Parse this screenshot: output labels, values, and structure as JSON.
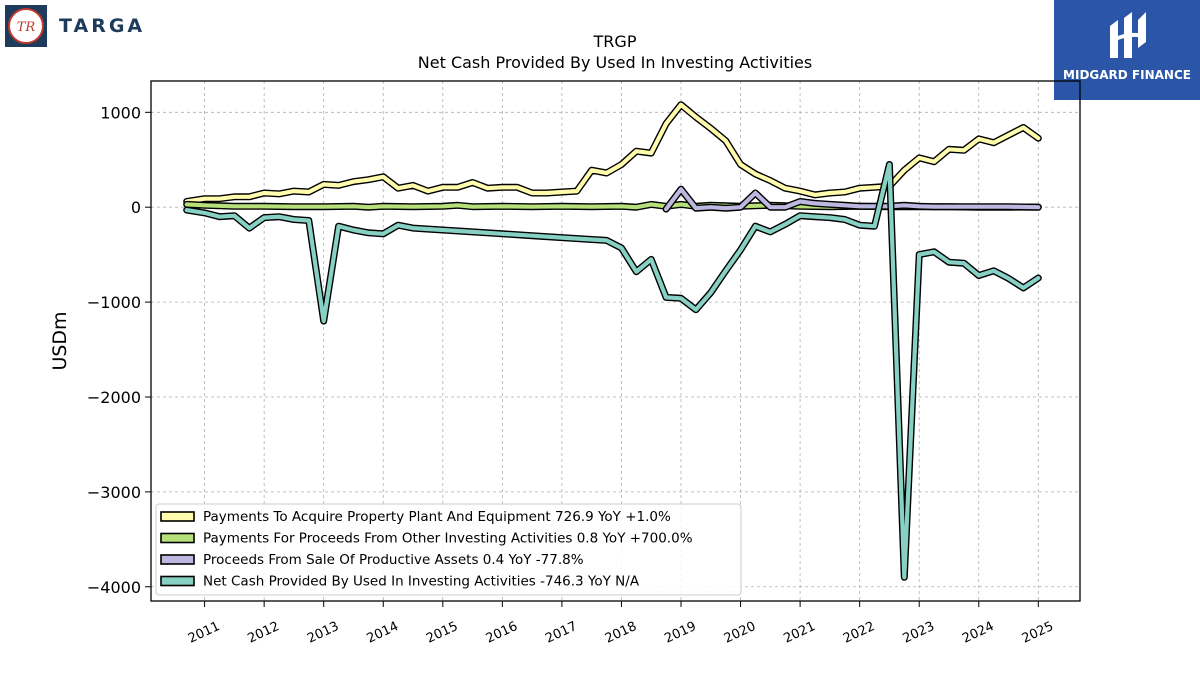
{
  "logos": {
    "left_text": "TARGA",
    "left_mark": "TR",
    "right_text": "MIDGARD FINANCE"
  },
  "colors": {
    "series_1": "#fffcad",
    "series_2": "#b5e07a",
    "series_3": "#bcb8e0",
    "series_4": "#86d1c4",
    "brand_left": "#1f3b5c",
    "brand_right": "#2b56a8"
  },
  "chart_data": {
    "type": "line",
    "title": "TRGP",
    "subtitle": "Net Cash Provided By Used In Investing Activities",
    "xlabel": "",
    "ylabel": "USDm",
    "xlim": [
      2010.1,
      2025.7
    ],
    "ylim": [
      -4150,
      1330
    ],
    "x_ticks": [
      2011,
      2012,
      2013,
      2014,
      2015,
      2016,
      2017,
      2018,
      2019,
      2020,
      2021,
      2022,
      2023,
      2024,
      2025
    ],
    "x_tick_labels": [
      "2011",
      "2012",
      "2013",
      "2014",
      "2015",
      "2016",
      "2017",
      "2018",
      "2019",
      "2020",
      "2021",
      "2022",
      "2023",
      "2024",
      "2025"
    ],
    "y_ticks": [
      1000,
      0,
      -1000,
      -2000,
      -3000,
      -4000
    ],
    "y_tick_labels": [
      "1000",
      "0",
      "−1000",
      "−2000",
      "−3000",
      "−4000"
    ],
    "grid": true,
    "legend_placement": "lower-left",
    "series": [
      {
        "name": "Payments To Acquire Property Plant And Equipment",
        "legend_label": "Payments To Acquire Property Plant And Equipment  726.9 YoY +1.0%",
        "color": "#fffcad",
        "points": [
          [
            2010.7,
            60
          ],
          [
            2011.0,
            90
          ],
          [
            2011.25,
            90
          ],
          [
            2011.5,
            110
          ],
          [
            2011.75,
            110
          ],
          [
            2012.0,
            150
          ],
          [
            2012.25,
            140
          ],
          [
            2012.5,
            170
          ],
          [
            2012.75,
            160
          ],
          [
            2013.0,
            240
          ],
          [
            2013.25,
            230
          ],
          [
            2013.5,
            270
          ],
          [
            2013.75,
            290
          ],
          [
            2014.0,
            320
          ],
          [
            2014.25,
            200
          ],
          [
            2014.5,
            230
          ],
          [
            2014.75,
            170
          ],
          [
            2015.0,
            210
          ],
          [
            2015.25,
            210
          ],
          [
            2015.5,
            260
          ],
          [
            2015.75,
            200
          ],
          [
            2016.0,
            210
          ],
          [
            2016.25,
            210
          ],
          [
            2016.5,
            150
          ],
          [
            2016.75,
            150
          ],
          [
            2017.0,
            160
          ],
          [
            2017.25,
            170
          ],
          [
            2017.5,
            390
          ],
          [
            2017.75,
            360
          ],
          [
            2018.0,
            450
          ],
          [
            2018.25,
            590
          ],
          [
            2018.5,
            570
          ],
          [
            2018.75,
            880
          ],
          [
            2019.0,
            1080
          ],
          [
            2019.25,
            950
          ],
          [
            2019.5,
            830
          ],
          [
            2019.75,
            700
          ],
          [
            2020.0,
            450
          ],
          [
            2020.25,
            350
          ],
          [
            2020.5,
            280
          ],
          [
            2020.75,
            200
          ],
          [
            2021.0,
            170
          ],
          [
            2021.25,
            130
          ],
          [
            2021.5,
            150
          ],
          [
            2021.75,
            160
          ],
          [
            2022.0,
            200
          ],
          [
            2022.25,
            210
          ],
          [
            2022.5,
            220
          ],
          [
            2022.75,
            390
          ],
          [
            2023.0,
            520
          ],
          [
            2023.25,
            480
          ],
          [
            2023.5,
            610
          ],
          [
            2023.75,
            600
          ],
          [
            2024.0,
            720
          ],
          [
            2024.25,
            680
          ],
          [
            2024.5,
            760
          ],
          [
            2024.75,
            840
          ],
          [
            2025.0,
            727
          ]
        ]
      },
      {
        "name": "Payments For Proceeds From Other Investing Activities",
        "legend_label": "Payments For Proceeds From Other Investing Activities  0.8 YoY +700.0%",
        "color": "#b5e07a",
        "points": [
          [
            2010.7,
            30
          ],
          [
            2011.0,
            20
          ],
          [
            2011.5,
            10
          ],
          [
            2012.0,
            10
          ],
          [
            2012.5,
            5
          ],
          [
            2013.0,
            5
          ],
          [
            2013.5,
            10
          ],
          [
            2013.75,
            0
          ],
          [
            2014.0,
            10
          ],
          [
            2014.5,
            5
          ],
          [
            2015.0,
            10
          ],
          [
            2015.25,
            20
          ],
          [
            2015.5,
            5
          ],
          [
            2016.0,
            10
          ],
          [
            2016.5,
            5
          ],
          [
            2017.0,
            10
          ],
          [
            2017.5,
            5
          ],
          [
            2018.0,
            10
          ],
          [
            2018.25,
            0
          ],
          [
            2018.5,
            30
          ],
          [
            2018.75,
            10
          ],
          [
            2019.0,
            30
          ],
          [
            2019.25,
            10
          ],
          [
            2019.5,
            20
          ],
          [
            2020.0,
            10
          ],
          [
            2020.5,
            20
          ],
          [
            2021.0,
            10
          ],
          [
            2021.5,
            5
          ],
          [
            2022.0,
            10
          ],
          [
            2022.5,
            5
          ],
          [
            2023.0,
            5
          ],
          [
            2023.5,
            5
          ],
          [
            2024.0,
            0
          ],
          [
            2024.5,
            0
          ],
          [
            2025.0,
            1
          ]
        ]
      },
      {
        "name": "Proceeds From Sale Of Productive Assets",
        "legend_label": "Proceeds From Sale Of Productive Assets  0.4 YoY -77.8%",
        "color": "#bcb8e0",
        "points": [
          [
            2018.75,
            -20
          ],
          [
            2019.0,
            190
          ],
          [
            2019.25,
            -10
          ],
          [
            2019.5,
            0
          ],
          [
            2019.75,
            -10
          ],
          [
            2020.0,
            0
          ],
          [
            2020.25,
            150
          ],
          [
            2020.5,
            0
          ],
          [
            2020.75,
            0
          ],
          [
            2021.0,
            60
          ],
          [
            2021.25,
            40
          ],
          [
            2021.5,
            30
          ],
          [
            2021.75,
            20
          ],
          [
            2022.0,
            10
          ],
          [
            2022.25,
            10
          ],
          [
            2022.5,
            10
          ],
          [
            2022.75,
            20
          ],
          [
            2023.0,
            10
          ],
          [
            2023.25,
            5
          ],
          [
            2023.5,
            5
          ],
          [
            2024.0,
            5
          ],
          [
            2024.5,
            5
          ],
          [
            2025.0,
            0.4
          ]
        ]
      },
      {
        "name": "Net Cash Provided By Used In Investing Activities",
        "legend_label": "Net Cash Provided By Used In Investing Activities  -746.3 YoY N/A",
        "color": "#86d1c4",
        "points": [
          [
            2010.7,
            -30
          ],
          [
            2011.0,
            -60
          ],
          [
            2011.25,
            -100
          ],
          [
            2011.5,
            -90
          ],
          [
            2011.75,
            -220
          ],
          [
            2012.0,
            -110
          ],
          [
            2012.25,
            -100
          ],
          [
            2012.5,
            -130
          ],
          [
            2012.75,
            -140
          ],
          [
            2013.0,
            -1200
          ],
          [
            2013.25,
            -200
          ],
          [
            2013.5,
            -240
          ],
          [
            2013.75,
            -270
          ],
          [
            2014.0,
            -280
          ],
          [
            2014.25,
            -190
          ],
          [
            2014.5,
            -220
          ],
          [
            2015.0,
            -240
          ],
          [
            2015.5,
            -260
          ],
          [
            2016.0,
            -280
          ],
          [
            2016.5,
            -300
          ],
          [
            2017.0,
            -320
          ],
          [
            2017.5,
            -340
          ],
          [
            2017.75,
            -350
          ],
          [
            2018.0,
            -430
          ],
          [
            2018.25,
            -680
          ],
          [
            2018.5,
            -550
          ],
          [
            2018.75,
            -950
          ],
          [
            2019.0,
            -960
          ],
          [
            2019.25,
            -1080
          ],
          [
            2019.5,
            -900
          ],
          [
            2019.75,
            -670
          ],
          [
            2020.0,
            -450
          ],
          [
            2020.25,
            -200
          ],
          [
            2020.5,
            -260
          ],
          [
            2020.75,
            -180
          ],
          [
            2021.0,
            -90
          ],
          [
            2021.25,
            -100
          ],
          [
            2021.5,
            -110
          ],
          [
            2021.75,
            -130
          ],
          [
            2022.0,
            -190
          ],
          [
            2022.25,
            -200
          ],
          [
            2022.5,
            450
          ],
          [
            2022.75,
            -3900
          ],
          [
            2023.0,
            -500
          ],
          [
            2023.25,
            -470
          ],
          [
            2023.5,
            -580
          ],
          [
            2023.75,
            -590
          ],
          [
            2024.0,
            -720
          ],
          [
            2024.25,
            -670
          ],
          [
            2024.5,
            -750
          ],
          [
            2024.75,
            -850
          ],
          [
            2025.0,
            -746
          ]
        ]
      }
    ]
  }
}
